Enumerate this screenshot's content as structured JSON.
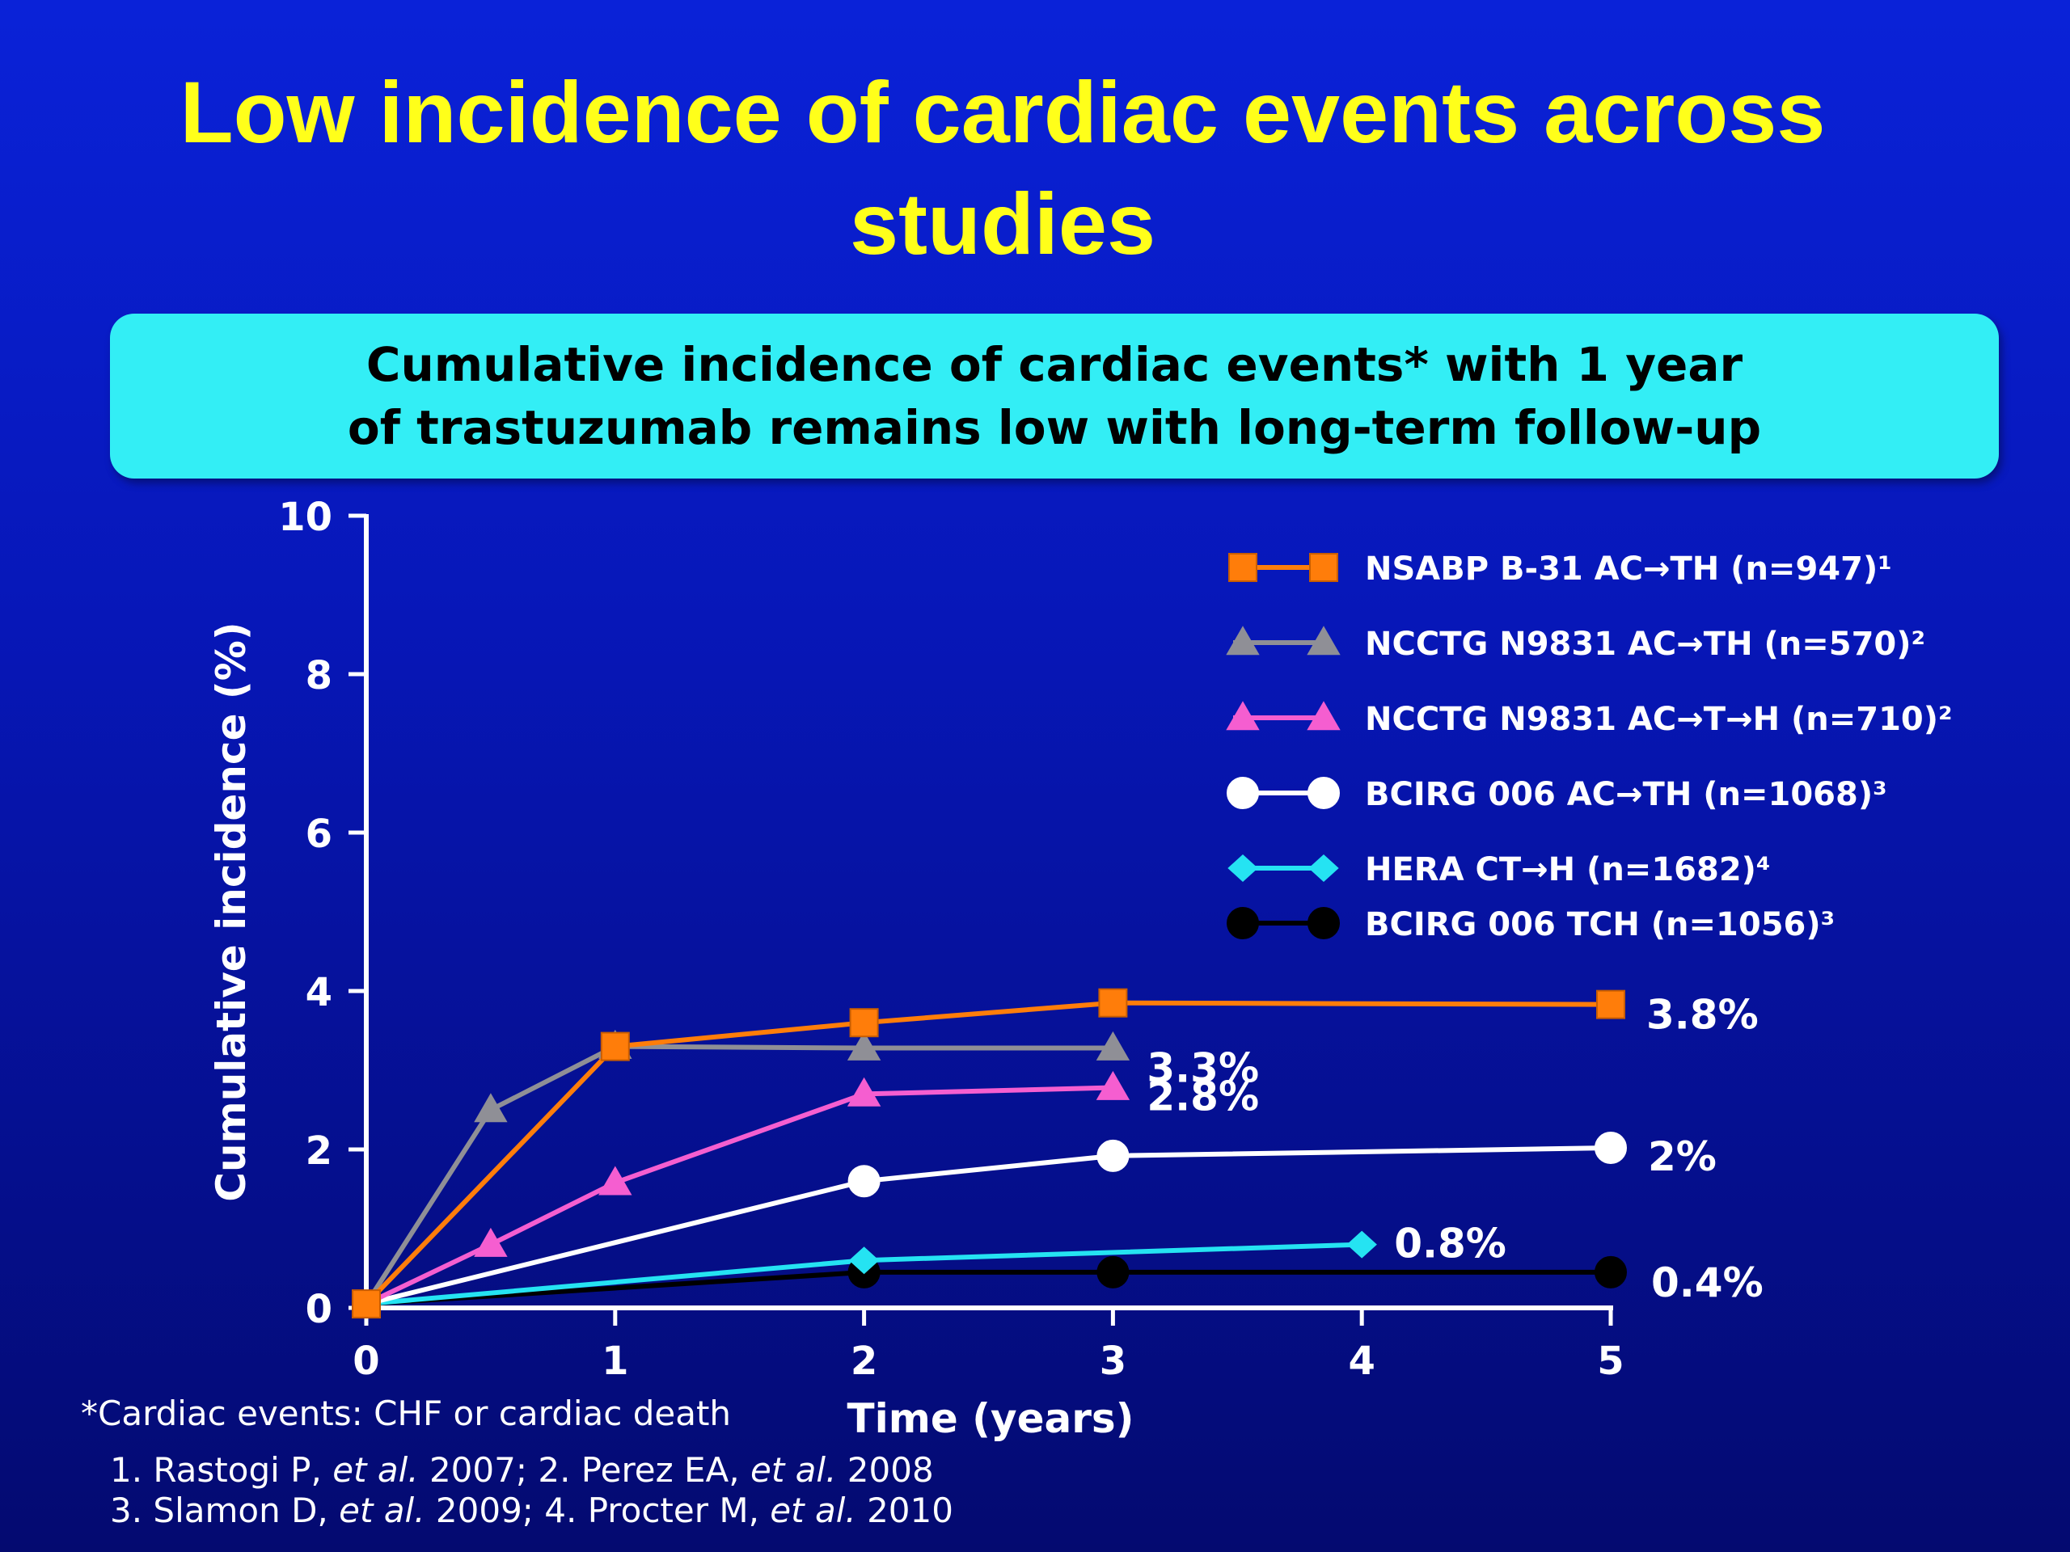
{
  "slide": {
    "title_line1": "Low incidence of cardiac events across",
    "title_line2": "studies",
    "banner_line1": "Cumulative incidence of cardiac events* with 1 year",
    "banner_line2": "of trastuzumab remains low with long-term follow-up",
    "footnote": "*Cardiac events: CHF or cardiac death",
    "references": [
      {
        "pre": "1. Rastogi P, ",
        "etal": "et al.",
        "mid": " 2007; 2. Perez EA, ",
        "etal2": "et al.",
        "post": " 2008"
      },
      {
        "pre": "3. Slamon D, ",
        "etal": "et al.",
        "mid": " 2009; 4. Procter M, ",
        "etal2": "et al.",
        "post": " 2010"
      }
    ]
  },
  "chart_data": {
    "type": "line",
    "title": "",
    "xlabel": "Time (years)",
    "ylabel": "Cumulative incidence (%)",
    "xlim": [
      0,
      5
    ],
    "ylim": [
      0,
      10
    ],
    "xticks": [
      0,
      1,
      2,
      3,
      4,
      5
    ],
    "yticks": [
      0,
      2,
      4,
      6,
      8,
      10
    ],
    "grid": false,
    "legend_position": "top-right",
    "series": [
      {
        "name": "NSABP B-31 AC→TH (n=947)¹",
        "color": "#ff7d0a",
        "marker": "square",
        "points": [
          [
            0,
            0.05
          ],
          [
            1,
            3.3
          ],
          [
            2,
            3.6
          ],
          [
            3,
            3.85
          ],
          [
            5,
            3.83
          ]
        ],
        "end_label": "3.8%"
      },
      {
        "name": "NCCTG N9831 AC→TH (n=570)²",
        "color": "#8f8f96",
        "marker": "triangle",
        "points": [
          [
            0,
            0.05
          ],
          [
            0.5,
            2.5
          ],
          [
            1,
            3.3
          ],
          [
            2,
            3.28
          ],
          [
            3,
            3.28
          ]
        ],
        "end_label": "3.3%"
      },
      {
        "name": "NCCTG N9831 AC→T→H (n=710)²",
        "color": "#f55ed0",
        "marker": "triangle",
        "points": [
          [
            0,
            0.05
          ],
          [
            0.5,
            0.8
          ],
          [
            1,
            1.58
          ],
          [
            2,
            2.7
          ],
          [
            3,
            2.78
          ]
        ],
        "end_label": "2.8%"
      },
      {
        "name": "BCIRG 006 AC→TH (n=1068)³",
        "color": "#ffffff",
        "marker": "circle",
        "points": [
          [
            0,
            0.05
          ],
          [
            2,
            1.6
          ],
          [
            3,
            1.92
          ],
          [
            5,
            2.02
          ]
        ],
        "end_label": "2%"
      },
      {
        "name": "HERA CT→H (n=1682)⁴",
        "color": "#25e3f2",
        "marker": "diamond",
        "points": [
          [
            0,
            0.05
          ],
          [
            2,
            0.6
          ],
          [
            4,
            0.8
          ]
        ],
        "end_label": "0.8%"
      },
      {
        "name": "BCIRG 006 TCH (n=1056)³",
        "color": "#000000",
        "marker": "circle",
        "points": [
          [
            0,
            0.05
          ],
          [
            2,
            0.45
          ],
          [
            3,
            0.45
          ],
          [
            5,
            0.45
          ]
        ],
        "end_label": "0.4%"
      }
    ]
  }
}
